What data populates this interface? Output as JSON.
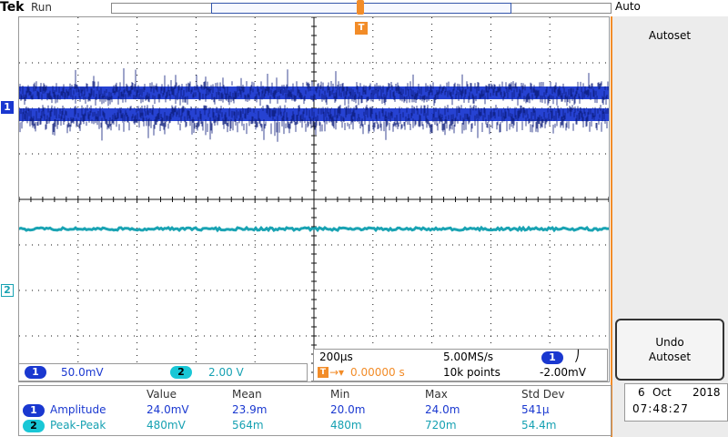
{
  "header": {
    "brand": "Tek",
    "run_state": "Run",
    "trigger_mode": "Auto"
  },
  "markers": {
    "trigger": "T",
    "ch1": "1",
    "ch2": "2"
  },
  "side_menu": {
    "autoset": "Autoset",
    "undo_line1": "Undo",
    "undo_line2": "Autoset"
  },
  "channels": {
    "ch1_num": "1",
    "ch1_scale": "50.0mV",
    "ch2_num": "2",
    "ch2_scale": "2.00 V"
  },
  "horizontal": {
    "timebase": "200µs",
    "sample_rate": "5.00MS/s",
    "trigger_source": "1",
    "trigger_slope": "⎠",
    "trigger_position": "0.00000 s",
    "record_length": "10k points",
    "trigger_level": "-2.00mV"
  },
  "measurements": {
    "headers": [
      "Value",
      "Mean",
      "Min",
      "Max",
      "Std Dev"
    ],
    "rows": [
      {
        "ch": "1",
        "name": "Amplitude",
        "value": "24.0mV",
        "mean": "23.9m",
        "min": "20.0m",
        "max": "24.0m",
        "std": "541µ"
      },
      {
        "ch": "2",
        "name": "Peak-Peak",
        "value": "480mV",
        "mean": "564m",
        "min": "480m",
        "max": "720m",
        "std": "54.4m"
      }
    ]
  },
  "datetime": {
    "day": "6",
    "month": "Oct",
    "year": "2018",
    "time": "07:48:27"
  },
  "colors": {
    "ch1": "#1a38d0",
    "ch1_dark": "#0b1c7a",
    "ch2": "#19a3b3",
    "trigger": "#f28c28",
    "grid": "#111111"
  }
}
